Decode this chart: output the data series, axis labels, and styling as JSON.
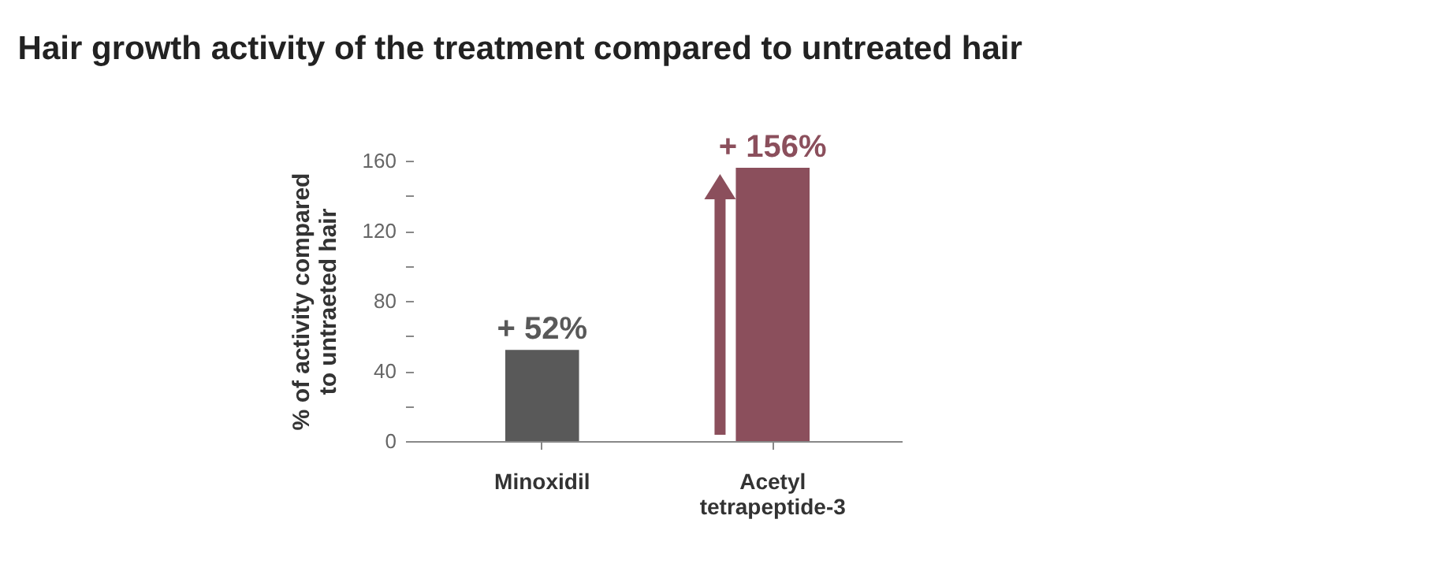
{
  "chart_data": {
    "type": "bar",
    "title": "Hair growth activity of the treatment compared to untreated hair",
    "ylabel": "% of activity compared to untraeted hair",
    "categories": [
      "Minoxidil",
      "Acetyl tetrapeptide-3"
    ],
    "values": [
      52,
      156
    ],
    "colors": [
      "#595959",
      "#8b4f5c"
    ],
    "value_labels": [
      "+ 52%",
      "+ 156%"
    ],
    "ylim": [
      0,
      160
    ],
    "yticks": [
      0,
      {
        "value": 20,
        "label": null
      },
      40,
      {
        "value": 60,
        "label": null
      },
      80,
      {
        "value": 100,
        "label": null
      },
      120,
      {
        "value": 140,
        "label": null
      },
      160
    ],
    "grid": false,
    "legend": false
  }
}
